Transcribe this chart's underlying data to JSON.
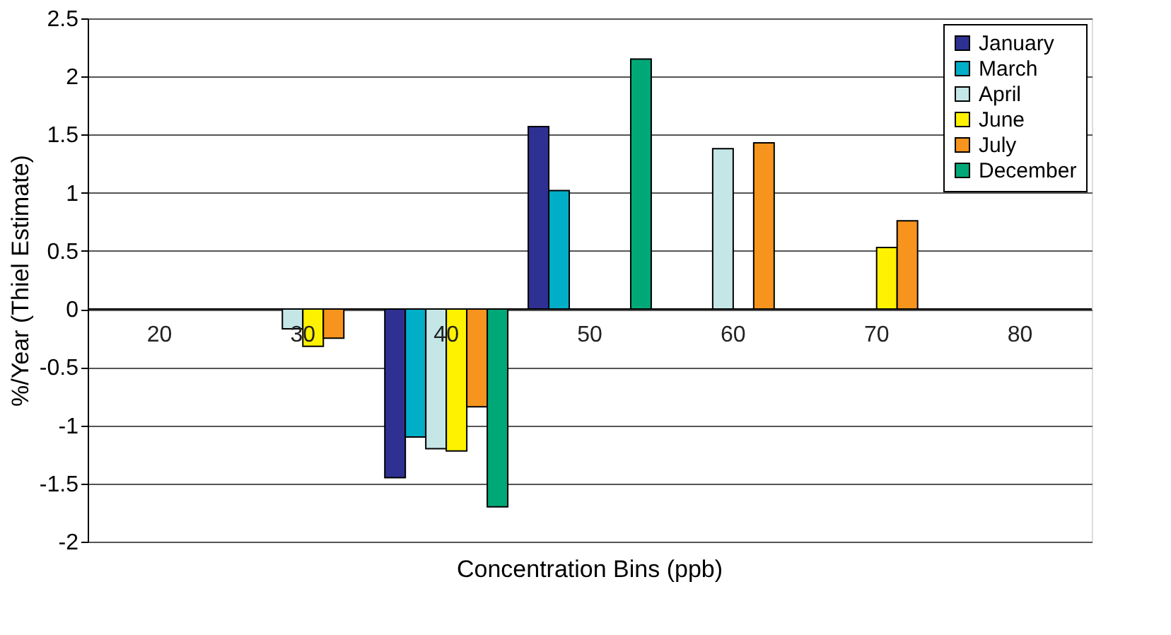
{
  "chart_data": {
    "type": "bar",
    "xlabel": "Concentration Bins (ppb)",
    "ylabel": "%/Year (Thiel Estimate)",
    "categories": [
      "20",
      "30",
      "40",
      "50",
      "60",
      "70",
      "80"
    ],
    "series": [
      {
        "name": "January",
        "color": "#2e3192",
        "values": [
          null,
          null,
          -1.45,
          1.57,
          null,
          null,
          null
        ]
      },
      {
        "name": "March",
        "color": "#00aec7",
        "values": [
          null,
          null,
          -1.1,
          1.02,
          null,
          null,
          null
        ]
      },
      {
        "name": "April",
        "color": "#c5e6e6",
        "values": [
          null,
          -0.17,
          -1.2,
          null,
          1.38,
          null,
          null
        ]
      },
      {
        "name": "June",
        "color": "#fff200",
        "values": [
          null,
          -0.32,
          -1.22,
          null,
          null,
          0.53,
          null
        ]
      },
      {
        "name": "July",
        "color": "#f7941d",
        "values": [
          null,
          -0.25,
          -0.84,
          null,
          1.43,
          0.76,
          null
        ]
      },
      {
        "name": "December",
        "color": "#00a878",
        "values": [
          null,
          null,
          -1.7,
          2.15,
          null,
          null,
          null
        ]
      }
    ],
    "ylim": [
      -2,
      2.5
    ],
    "yticks": [
      -2,
      -1.5,
      -1,
      -0.5,
      0,
      0.5,
      1,
      1.5,
      2,
      2.5
    ],
    "grid": "y",
    "legend": "top right"
  }
}
